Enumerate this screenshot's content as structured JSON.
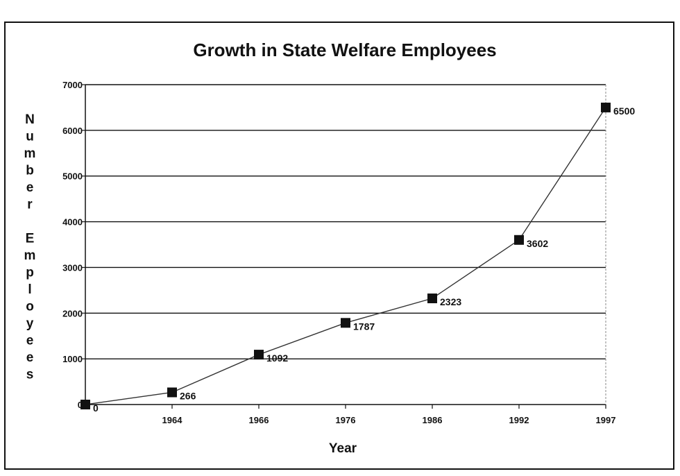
{
  "chart_data": {
    "type": "line",
    "title": "Growth in State Welfare Employees",
    "xlabel": "Year",
    "ylabel": "Number Employees",
    "x": [
      "",
      "1964",
      "1966",
      "1976",
      "1986",
      "1992",
      "1997"
    ],
    "series": [
      {
        "values": [
          0,
          266,
          1092,
          1787,
          2323,
          3602,
          6500
        ]
      }
    ],
    "data_labels": [
      "0",
      "266",
      "1092",
      "1787",
      "2323",
      "3602",
      "6500"
    ],
    "ylim": [
      0,
      7000
    ],
    "yticks": [
      0,
      1000,
      2000,
      3000,
      4000,
      5000,
      6000,
      7000
    ],
    "grid": true,
    "legend": "none",
    "colors": {
      "line": "#333333",
      "marker": "#111111",
      "grid": "#111111"
    }
  }
}
